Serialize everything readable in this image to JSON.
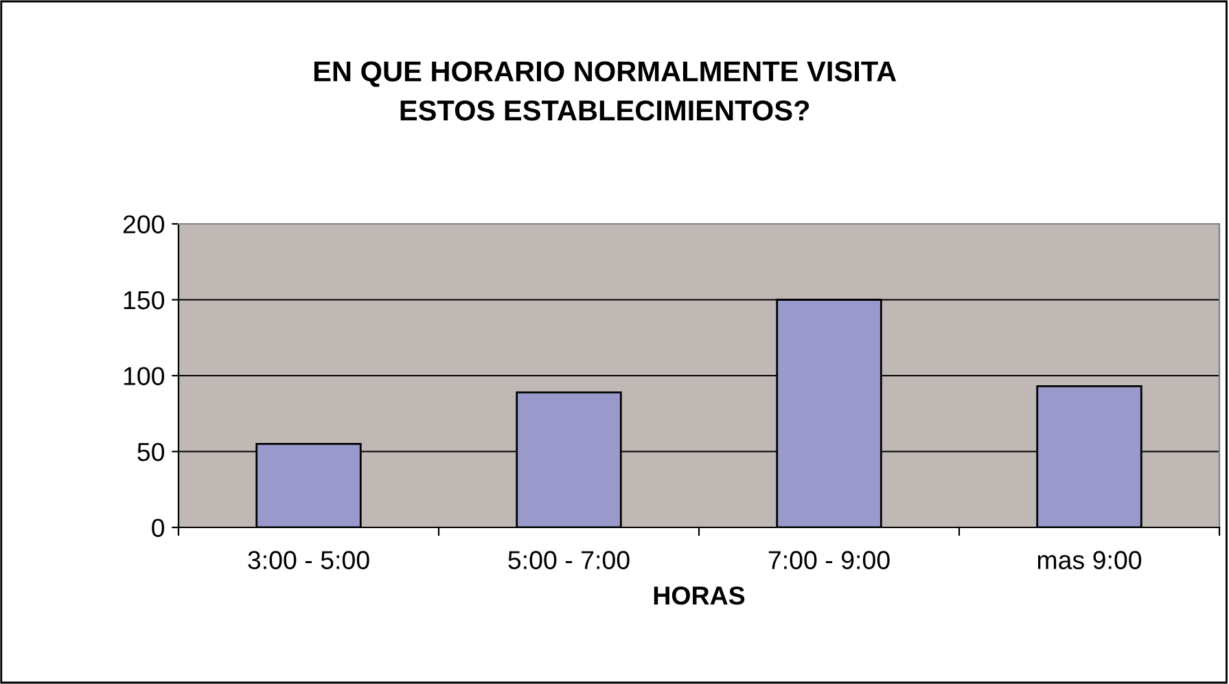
{
  "chart_data": {
    "type": "bar",
    "title": "EN QUE HORARIO NORMALMENTE VISITA\nESTOS ESTABLECIMIENTOS?",
    "xlabel": "HORAS",
    "categories": [
      "3:00 - 5:00",
      "5:00 - 7:00",
      "7:00 - 9:00",
      "mas 9:00"
    ],
    "values": [
      55,
      89,
      150,
      93
    ],
    "color": "#9999cc",
    "ylim": [
      0,
      200
    ],
    "yticks": [
      0,
      50,
      100,
      150,
      200
    ],
    "grid": "y",
    "legend": false
  }
}
